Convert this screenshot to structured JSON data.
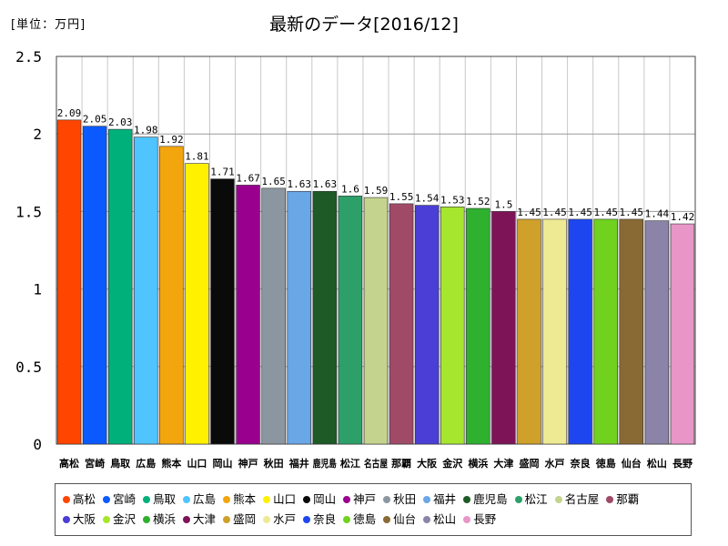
{
  "unit_label": "[単位：万円]",
  "chart_data": {
    "type": "bar",
    "title": "最新のデータ[2016/12]",
    "ylim": [
      0,
      2.5
    ],
    "yticks": [
      "0",
      "0.5",
      "1",
      "1.5",
      "2",
      "2.5"
    ],
    "grid": true,
    "categories": [
      "高松",
      "宮崎",
      "鳥取",
      "広島",
      "熊本",
      "山口",
      "岡山",
      "神戸",
      "秋田",
      "福井",
      "鹿児島",
      "松江",
      "名古屋",
      "那覇",
      "大阪",
      "金沢",
      "横浜",
      "大津",
      "盛岡",
      "水戸",
      "奈良",
      "徳島",
      "仙台",
      "松山",
      "長野"
    ],
    "values": [
      2.09,
      2.05,
      2.03,
      1.98,
      1.92,
      1.81,
      1.71,
      1.67,
      1.65,
      1.63,
      1.63,
      1.6,
      1.59,
      1.55,
      1.54,
      1.53,
      1.52,
      1.5,
      1.45,
      1.45,
      1.45,
      1.45,
      1.45,
      1.44,
      1.42
    ],
    "value_labels": [
      "2.09",
      "2.05",
      "2.03",
      "1.98",
      "1.92",
      "1.81",
      "1.71",
      "1.67",
      "1.65",
      "1.63",
      "1.63",
      "1.6",
      "1.59",
      "1.55",
      "1.54",
      "1.53",
      "1.52",
      "1.5",
      "1.45",
      "1.45",
      "1.45",
      "1.45",
      "1.45",
      "1.44",
      "1.42"
    ],
    "colors": [
      "#FF4500",
      "#0A5AFF",
      "#00B07A",
      "#4FC4FF",
      "#F2A50C",
      "#FFF100",
      "#0A0A0A",
      "#9A008E",
      "#8C96A0",
      "#69A7E6",
      "#1D5A26",
      "#2DA06A",
      "#C4D48E",
      "#A04A68",
      "#4A3ED6",
      "#A6E62E",
      "#2FB02F",
      "#7E1458",
      "#CFA02A",
      "#EEEA94",
      "#1E46F0",
      "#70D21E",
      "#8A6A34",
      "#8C84A8",
      "#E896C8"
    ],
    "legend": [
      "高松",
      "宮崎",
      "鳥取",
      "広島",
      "熊本",
      "山口",
      "岡山",
      "神戸",
      "秋田",
      "福井",
      "鹿児島",
      "松江",
      "名古屋",
      "那覇",
      "大阪",
      "金沢",
      "横浜",
      "大津",
      "盛岡",
      "水戸",
      "奈良",
      "徳島",
      "仙台",
      "松山",
      "長野"
    ]
  }
}
